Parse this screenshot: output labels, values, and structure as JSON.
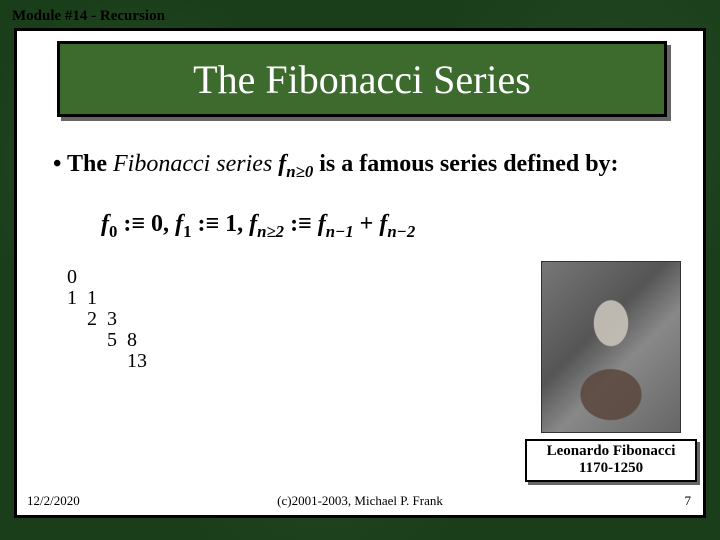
{
  "module_label": "Module #14 - Recursion",
  "title": "The Fibonacci Series",
  "bullet_prefix": "• The ",
  "bullet_italic": "Fibonacci series",
  "bullet_mid": " ",
  "bullet_after": " is a famous series defined by:",
  "defn": {
    "f0_lhs_f": "f",
    "f0_lhs_sub": "0",
    "f0_rhs": " :≡ 0,   ",
    "f1_lhs_f": "f",
    "f1_lhs_sub": "1",
    "f1_rhs": " :≡ 1,   ",
    "fn_lhs_f": "f",
    "fn_lhs_sub": "n≥2",
    "fn_rhs_a": " :≡ ",
    "fn1_f": "f",
    "fn1_sub": "n−1",
    "plus": " + ",
    "fn2_f": "f",
    "fn2_sub": "n−2"
  },
  "series_sub_f": "f",
  "series_sub_n": "n≥0",
  "tree": {
    "r0": "0",
    "r1": "1  1",
    "r2": "    2  3",
    "r3": "        5  8",
    "r4": "            13"
  },
  "caption_name": "Leonardo Fibonacci",
  "caption_dates": "1170-1250",
  "footer": {
    "date": "12/2/2020",
    "copy": "(c)2001-2003, Michael P. Frank",
    "page": "7"
  },
  "colors": {
    "bg": "#1a3d1a",
    "title_bg": "#3d6b2e"
  }
}
